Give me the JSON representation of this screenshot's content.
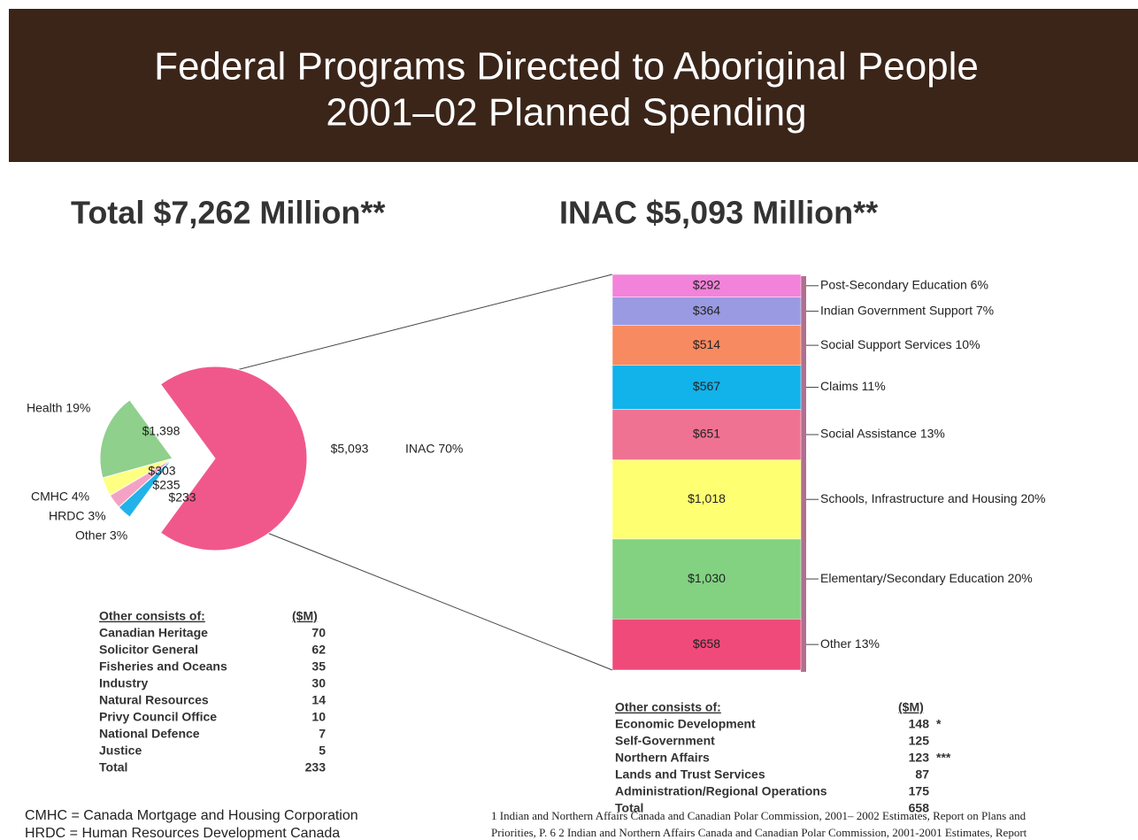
{
  "title": [
    "Federal Programs Directed to Aboriginal People",
    "2001–02 Planned Spending"
  ],
  "chart_data": [
    {
      "type": "pie",
      "title": "Total $7,262 Million**",
      "categories": [
        "INAC 70%",
        "Health 19%",
        "CMHC 4%",
        "HRDC 3%",
        "Other 3%"
      ],
      "values": [
        5093,
        1398,
        303,
        235,
        233
      ],
      "value_labels": [
        "$5,093",
        "$1,398",
        "$303",
        "$235",
        "$233"
      ],
      "colors": [
        "#f0588c",
        "#8fd08c",
        "#ffff82",
        "#f4a2c4",
        "#22b2ea"
      ]
    },
    {
      "type": "stacked_bar",
      "title": "INAC $5,093 Million**",
      "categories": [
        "Other 13%",
        "Elementary/Secondary Education 20%",
        "Schools, Infrastructure and Housing 20%",
        "Social Assistance 13%",
        "Claims 11%",
        "Social Support Services 10%",
        "Indian Government Support 7%",
        "Post-Secondary Education 6%"
      ],
      "values": [
        658,
        1030,
        1018,
        651,
        567,
        514,
        364,
        292
      ],
      "value_labels": [
        "$658",
        "$1,030",
        "$1,018",
        "$651",
        "$567",
        "$514",
        "$364",
        "$292"
      ],
      "colors": [
        "#f04a7a",
        "#82d282",
        "#ffff72",
        "#f07292",
        "#12b2ea",
        "#f88a62",
        "#9a9ae2",
        "#f282da"
      ]
    }
  ],
  "tables": [
    {
      "heading": "Other consists of:",
      "unit": "($M)",
      "rows": [
        {
          "name": "Canadian Heritage",
          "value": "70"
        },
        {
          "name": "Solicitor General",
          "value": "62"
        },
        {
          "name": "Fisheries and Oceans",
          "value": "35"
        },
        {
          "name": "Industry",
          "value": "30"
        },
        {
          "name": "Natural Resources",
          "value": "14"
        },
        {
          "name": "Privy Council Office",
          "value": "10"
        },
        {
          "name": "National Defence",
          "value": "7"
        },
        {
          "name": "Justice",
          "value": "5"
        },
        {
          "name": "Total",
          "value": "233"
        }
      ]
    },
    {
      "heading": "Other consists of:",
      "unit": "($M)",
      "rows": [
        {
          "name": "Economic Development",
          "value": "148",
          "note": "*"
        },
        {
          "name": "Self-Government",
          "value": "125"
        },
        {
          "name": "Northern Affairs",
          "value": "123",
          "note": "***"
        },
        {
          "name": "Lands and Trust Services",
          "value": "87"
        },
        {
          "name": "Administration/Regional Operations",
          "value": "175"
        },
        {
          "name": "Total",
          "value": "658"
        }
      ]
    }
  ],
  "abbreviations": [
    "CMHC = Canada Mortgage and Housing Corporation",
    "HRDC = Human Resources Development Canada"
  ],
  "footnotes": [
    "1 Indian and Northern Affairs Canada and Canadian Polar Commission, 2001– 2002 Estimates, Report on Plans and",
    "Priorities, P. 6 2 Indian and Northern Affairs Canada and Canadian Polar Commission, 2001-2001 Estimates, Report"
  ]
}
